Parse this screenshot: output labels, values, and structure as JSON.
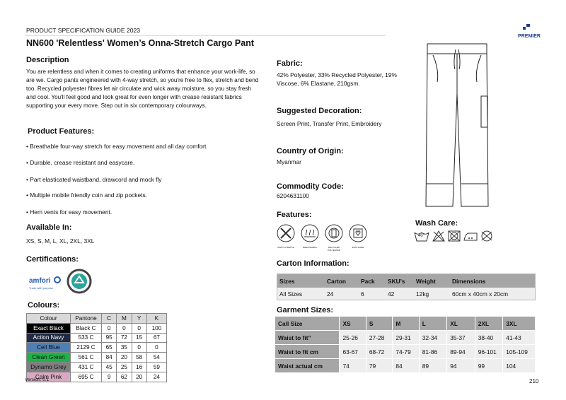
{
  "header": {
    "guide": "PRODUCT SPECIFICATION GUIDE 2023",
    "brand": "PREMIER",
    "title": "NN600 'Relentless' Women’s Onna-Stretch Cargo Pant"
  },
  "description": {
    "heading": "Description",
    "text": "You are relentless and when it comes to creating uniforms that enhance your work-life, so are we.  Cargo pants engineered with  4-way stretch, so you're free to flex, stretch and bend too.  Recycled polyester fibres let air circulate and wick away moisture, so you stay fresh and cool.  You'll feel good and look great for even longer with crease resistant fabrics supporting your every move.  Step out in six contemporary colourways."
  },
  "features": {
    "heading": "Product Features:",
    "items": [
      "• Breathable four-way stretch for easy movement and all day comfort.",
      "• Durable, crease resistant and easycare.",
      "• Part elasticated waistband, drawcord and mock fly",
      "• Multiple mobile friendly coin and zip pockets.",
      "• Hem vents for easy movement."
    ]
  },
  "available": {
    "heading": "Available In:",
    "sizes": "XS, S, M, L, XL, 2XL, 3XL"
  },
  "certifications": {
    "heading": "Certifications:",
    "amfori": "amfori",
    "amfori_tag": "Trade with purpose"
  },
  "colours": {
    "heading": "Colours:",
    "columns": [
      "Colour",
      "Pantone",
      "C",
      "M",
      "Y",
      "K"
    ],
    "rows": [
      {
        "name": "Exact Black",
        "pantone": "Black C",
        "c": "0",
        "m": "0",
        "y": "0",
        "k": "100",
        "bg": "#000000",
        "fg": "#ffffff"
      },
      {
        "name": "Action Navy",
        "pantone": "533 C",
        "c": "95",
        "m": "72",
        "y": "15",
        "k": "67",
        "bg": "#1f2a44",
        "fg": "#ffffff"
      },
      {
        "name": "Ceil Blue",
        "pantone": "2129 C",
        "c": "65",
        "m": "35",
        "y": "0",
        "k": "0",
        "bg": "#4f7fb5",
        "fg": "#111111"
      },
      {
        "name": "Clean Green",
        "pantone": "561 C",
        "c": "84",
        "m": "20",
        "y": "58",
        "k": "54",
        "bg": "#1fb24a",
        "fg": "#111111"
      },
      {
        "name": "Dynamo Grey",
        "pantone": "431 C",
        "c": "45",
        "m": "25",
        "y": "16",
        "k": "59",
        "bg": "#7f7f7f",
        "fg": "#111111"
      },
      {
        "name": "Calm Pink",
        "pantone": "695 C",
        "c": "9",
        "m": "62",
        "y": "20",
        "k": "24",
        "bg": "#d9a9c4",
        "fg": "#111111"
      }
    ]
  },
  "version": "Version: 0.1",
  "fabric": {
    "heading": "Fabric:",
    "text": "42% Polyester, 33% Recycled Polyester, 19% Viscose, 6% Elastane, 210gsm."
  },
  "decoration": {
    "heading": "Suggested Decoration:",
    "text": "Screen Print, Transfer Print, Embroidery"
  },
  "origin": {
    "heading": "Country of Origin:",
    "text": "Myanmar"
  },
  "commodity": {
    "heading": "Commodity Code:",
    "text": "6204631100"
  },
  "feature_icons": {
    "heading": "Features:",
    "labels": [
      "4-WAY STRETCH",
      "BREATHABLE",
      "RECYCLED POLYESTER",
      "EASYCARE"
    ]
  },
  "wash": {
    "heading": "Wash Care:",
    "temp": "40°",
    "icons": [
      "wash-40-icon",
      "no-bleach-icon",
      "no-tumble-dry-icon",
      "iron-medium-icon",
      "no-dry-clean-icon"
    ]
  },
  "carton": {
    "heading": "Carton Information:",
    "columns": [
      "Sizes",
      "Carton",
      "Pack",
      "SKU’s",
      "Weight",
      "Dimensions"
    ],
    "row": [
      "All Sizes",
      "24",
      "6",
      "42",
      "12kg",
      "60cm x 40cm x 20cm"
    ]
  },
  "garment": {
    "heading": "Garment Sizes:",
    "rows": [
      [
        "Call Size",
        "XS",
        "S",
        "M",
        "L",
        "XL",
        "2XL",
        "3XL"
      ],
      [
        "Waist to fit”",
        "25-26",
        "27-28",
        "29-31",
        "32-34",
        "35-37",
        "38-40",
        "41-43"
      ],
      [
        "Waist to fit cm",
        "63-67",
        "68-72",
        "74-79",
        "81-86",
        "89-94",
        "96-101",
        "105-109"
      ],
      [
        "Waist actual cm",
        "74",
        "79",
        "84",
        "89",
        "94",
        "99",
        "104"
      ]
    ]
  },
  "page_number": "210"
}
